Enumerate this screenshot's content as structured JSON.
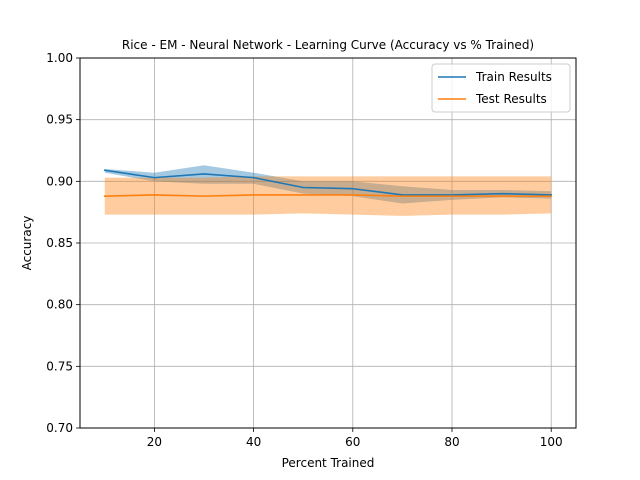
{
  "chart_data": {
    "type": "line",
    "title": "Rice - EM - Neural Network - Learning Curve (Accuracy vs % Trained)",
    "xlabel": "Percent Trained",
    "ylabel": "Accuracy",
    "xlim": [
      5,
      105
    ],
    "ylim": [
      0.7,
      1.0
    ],
    "xticks": [
      20,
      40,
      60,
      80,
      100
    ],
    "yticks": [
      0.7,
      0.75,
      0.8,
      0.85,
      0.9,
      0.95,
      1.0
    ],
    "ytick_labels": [
      "0.70",
      "0.75",
      "0.80",
      "0.85",
      "0.90",
      "0.95",
      "1.00"
    ],
    "grid": true,
    "legend_position": "upper-right",
    "x": [
      10,
      20,
      30,
      40,
      50,
      60,
      70,
      80,
      90,
      100
    ],
    "series": [
      {
        "name": "Train Results",
        "color": "#1f77b4",
        "values": [
          0.909,
          0.903,
          0.906,
          0.903,
          0.895,
          0.894,
          0.889,
          0.889,
          0.89,
          0.889
        ],
        "lower": [
          0.907,
          0.9,
          0.898,
          0.898,
          0.89,
          0.888,
          0.882,
          0.885,
          0.887,
          0.886
        ],
        "upper": [
          0.91,
          0.907,
          0.913,
          0.907,
          0.9,
          0.9,
          0.896,
          0.893,
          0.893,
          0.892
        ]
      },
      {
        "name": "Test Results",
        "color": "#ff7f0e",
        "values": [
          0.888,
          0.889,
          0.888,
          0.889,
          0.889,
          0.889,
          0.888,
          0.888,
          0.888,
          0.888
        ],
        "lower": [
          0.873,
          0.873,
          0.873,
          0.873,
          0.874,
          0.873,
          0.872,
          0.873,
          0.873,
          0.874
        ],
        "upper": [
          0.903,
          0.903,
          0.903,
          0.904,
          0.904,
          0.904,
          0.904,
          0.904,
          0.904,
          0.904
        ]
      }
    ]
  }
}
